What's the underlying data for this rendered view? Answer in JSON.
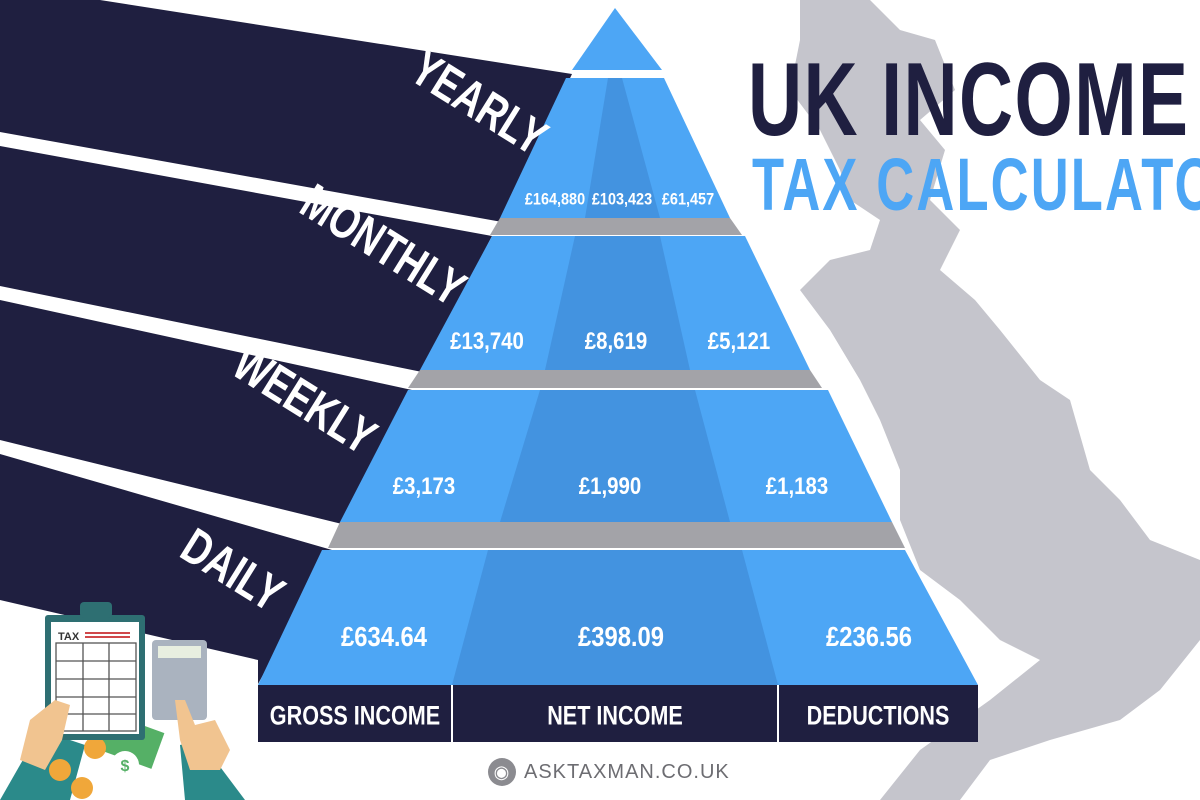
{
  "title": {
    "line1": "UK INCOME",
    "line2": "TAX CALCULATOR"
  },
  "periods": [
    {
      "label": "YEARLY",
      "gross": "£164,880",
      "net": "£103,423",
      "deductions": "£61,457"
    },
    {
      "label": "MONTHLY",
      "gross": "£13,740",
      "net": "£8,619",
      "deductions": "£5,121"
    },
    {
      "label": "WEEKLY",
      "gross": "£3,173",
      "net": "£1,990",
      "deductions": "£1,183"
    },
    {
      "label": "DAILY",
      "gross": "£634.64",
      "net": "£398.09",
      "deductions": "£236.56"
    }
  ],
  "columns": [
    "GROSS INCOME",
    "NET INCOME",
    "DEDUCTIONS"
  ],
  "illustration": {
    "clipboard_text": "TAX",
    "icon": "tax-calculator-illustration"
  },
  "footer": {
    "website": "ASKTAXMAN.CO.UK",
    "icon": "globe-icon"
  },
  "colors": {
    "navy": "#1f1f40",
    "blue": "#4da6f5",
    "blue_dark": "#4393e0",
    "slab_gray": "#a3a3a8",
    "map_gray": "#c5c5cc"
  }
}
